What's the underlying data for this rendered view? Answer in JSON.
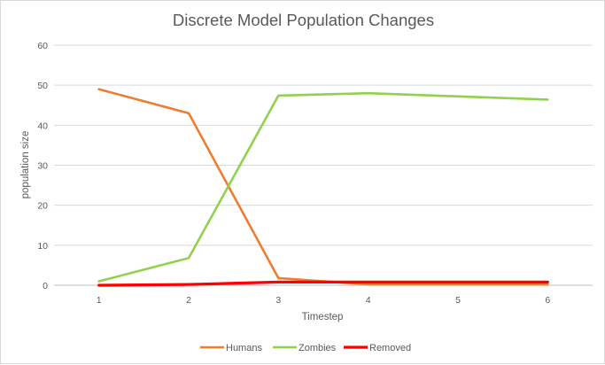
{
  "chart_data": {
    "type": "line",
    "title": "Discrete Model Population Changes",
    "xlabel": "Timestep",
    "ylabel": "population size",
    "x": [
      1,
      2,
      3,
      4,
      5,
      6
    ],
    "ylim": [
      0,
      60
    ],
    "yticks": [
      0,
      10,
      20,
      30,
      40,
      50,
      60
    ],
    "grid": true,
    "legend_position": "bottom",
    "series": [
      {
        "name": "Humans",
        "color": "#ED7D31",
        "values": [
          49,
          43,
          1.8,
          0.2,
          0.2,
          0.2
        ]
      },
      {
        "name": "Zombies",
        "color": "#92D050",
        "values": [
          1,
          6.8,
          47.4,
          48,
          47.2,
          46.4
        ]
      },
      {
        "name": "Removed",
        "color": "#FF0000",
        "values": [
          0,
          0.2,
          0.8,
          0.8,
          0.8,
          0.8
        ]
      }
    ]
  }
}
